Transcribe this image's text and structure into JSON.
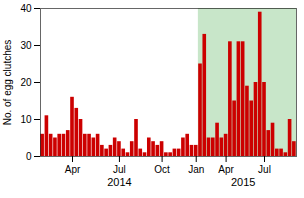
{
  "chart_data": {
    "type": "bar",
    "ylabel": "No. of egg clutches",
    "categories": [
      null,
      null,
      null,
      null,
      null,
      null,
      null,
      "Apr",
      null,
      null,
      null,
      null,
      null,
      null,
      null,
      null,
      null,
      null,
      "Jul",
      null,
      null,
      null,
      null,
      null,
      null,
      null,
      null,
      null,
      "Oct",
      null,
      null,
      null,
      null,
      null,
      null,
      null,
      "Jan",
      null,
      null,
      null,
      null,
      null,
      null,
      "Apr",
      null,
      null,
      null,
      null,
      null,
      null,
      null,
      null,
      "Jul",
      null,
      null,
      null,
      null,
      null,
      null,
      null
    ],
    "values": [
      6,
      11,
      6,
      5,
      6,
      6,
      7,
      16,
      13,
      10,
      6,
      6,
      5,
      6,
      3,
      2,
      3,
      5,
      4,
      2,
      1,
      4,
      10,
      2,
      1,
      5,
      4,
      3,
      4,
      1,
      1,
      2,
      2,
      5,
      6,
      3,
      3,
      25,
      33,
      5,
      5,
      9,
      5,
      6,
      31,
      15,
      31,
      31,
      19,
      15,
      20,
      39,
      20,
      7,
      9,
      2,
      2,
      1,
      10,
      4
    ],
    "color": "#cc0000",
    "shaded_region": {
      "start": 37,
      "end": 59,
      "color": "#c8e6c9"
    },
    "annotations": [
      {
        "text": "2014",
        "x": 18
      },
      {
        "text": "2015",
        "x": 47
      }
    ],
    "ylim": [
      0,
      40
    ],
    "yticks": [
      0,
      10,
      20,
      30,
      40
    ]
  }
}
